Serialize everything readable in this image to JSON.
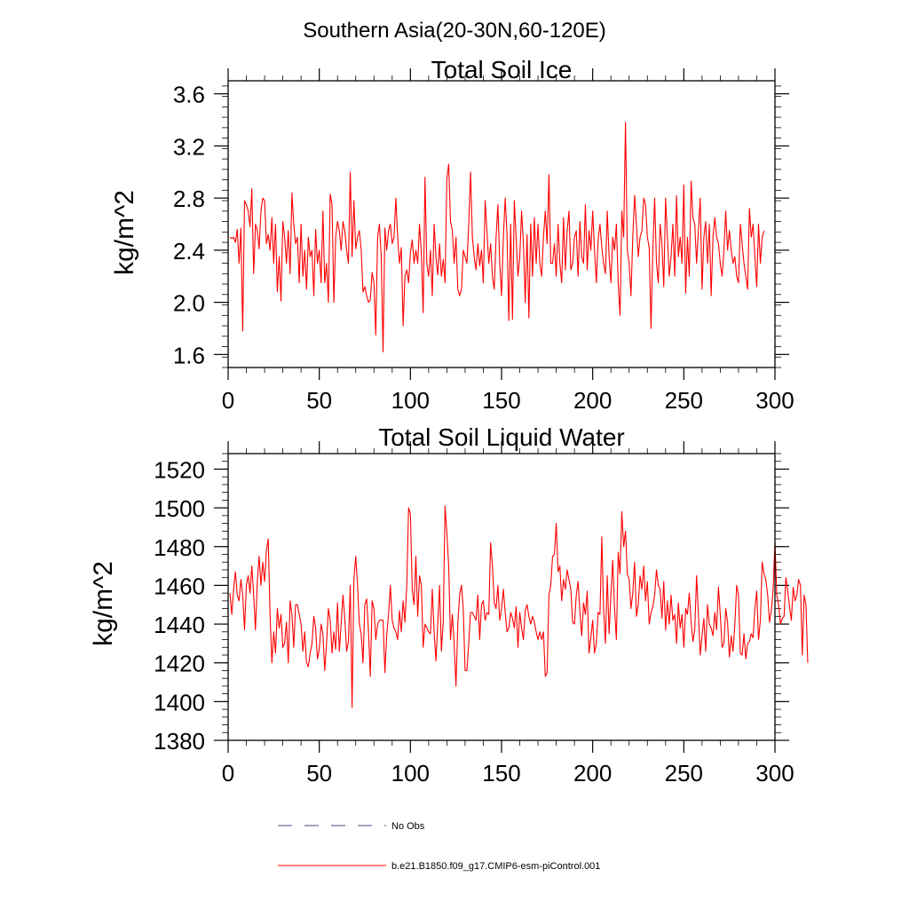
{
  "figure": {
    "region_title": "Southern Asia(20-30N,60-120E)"
  },
  "legend": {
    "items": [
      {
        "label": "No Obs",
        "color": "#4a4a8a",
        "style": "dashed"
      },
      {
        "label": "b.e21.B1850.f09_g17.CMIP6-esm-piControl.001",
        "color": "#ff0000",
        "style": "solid"
      }
    ]
  },
  "chart_data": [
    {
      "type": "line",
      "title": "Total Soil Ice",
      "xlabel": "",
      "ylabel": "kg/m^2",
      "xlim": [
        0,
        300
      ],
      "ylim": [
        1.5,
        3.7
      ],
      "xticks": [
        0,
        50,
        100,
        150,
        200,
        250,
        300
      ],
      "xtick_labels": [
        "0",
        "50",
        "100",
        "150",
        "200",
        "250",
        "300"
      ],
      "yticks": [
        1.6,
        2.0,
        2.4,
        2.8,
        3.2,
        3.6
      ],
      "ytick_labels": [
        "1.6",
        "2.0",
        "2.4",
        "2.8",
        "3.2",
        "3.6"
      ],
      "series": [
        {
          "name": "b.e21.B1850.f09_g17.CMIP6-esm-piControl.001",
          "color": "#ff0000",
          "x_start": 1,
          "values": [
            2.5,
            2.49,
            2.5,
            2.46,
            2.56,
            2.3,
            2.57,
            1.78,
            2.78,
            2.75,
            2.7,
            2.58,
            2.87,
            2.22,
            2.6,
            2.55,
            2.41,
            2.7,
            2.8,
            2.78,
            2.45,
            2.52,
            2.4,
            2.65,
            2.3,
            2.6,
            2.08,
            2.35,
            2.01,
            2.62,
            2.5,
            2.3,
            2.55,
            2.22,
            2.84,
            2.6,
            2.45,
            2.5,
            2.15,
            2.6,
            2.2,
            2.4,
            2.1,
            2.5,
            2.35,
            2.4,
            2.05,
            2.56,
            2.3,
            2.4,
            2.15,
            2.7,
            2.15,
            2.3,
            2.0,
            2.83,
            2.75,
            2.0,
            2.5,
            2.62,
            2.55,
            2.4,
            2.62,
            2.55,
            2.4,
            2.3,
            3.0,
            2.35,
            2.78,
            2.41,
            2.5,
            2.55,
            2.4,
            2.08,
            2.12,
            2.05,
            2.0,
            2.02,
            2.23,
            2.15,
            1.75,
            2.5,
            2.6,
            2.35,
            1.62,
            2.57,
            2.4,
            2.55,
            2.6,
            2.45,
            2.5,
            2.8,
            2.5,
            2.3,
            2.42,
            1.82,
            2.2,
            2.25,
            2.15,
            2.38,
            2.48,
            2.3,
            2.4,
            2.3,
            2.6,
            2.38,
            1.92,
            2.96,
            2.3,
            2.2,
            2.4,
            2.05,
            2.6,
            2.35,
            2.21,
            2.45,
            2.2,
            2.33,
            2.15,
            2.95,
            3.06,
            2.62,
            2.55,
            2.3,
            2.5,
            2.1,
            2.05,
            2.1,
            2.4,
            2.35,
            2.3,
            2.6,
            3.0,
            2.5,
            2.35,
            2.25,
            2.45,
            2.28,
            2.4,
            2.15,
            2.78,
            2.54,
            2.3,
            2.45,
            2.2,
            2.1,
            2.5,
            2.75,
            2.3,
            2.05,
            2.5,
            2.8,
            2.52,
            1.86,
            2.6,
            1.87,
            2.78,
            2.5,
            2.2,
            2.35,
            2.7,
            2.45,
            2.0,
            2.52,
            1.88,
            2.6,
            2.2,
            2.65,
            2.3,
            2.6,
            2.3,
            2.2,
            2.5,
            2.7,
            2.45,
            2.98,
            2.3,
            2.3,
            2.45,
            2.2,
            2.6,
            2.3,
            2.15,
            2.65,
            2.25,
            2.55,
            2.7,
            2.25,
            2.3,
            2.5,
            2.55,
            2.2,
            2.62,
            2.35,
            2.3,
            2.75,
            2.25,
            2.55,
            2.4,
            2.7,
            2.4,
            2.15,
            2.48,
            2.6,
            2.42,
            2.3,
            2.22,
            2.7,
            2.35,
            2.15,
            2.5,
            2.4,
            2.6,
            2.15,
            1.9,
            2.7,
            2.5,
            3.38,
            2.4,
            2.3,
            2.05,
            2.5,
            2.82,
            2.6,
            2.35,
            2.5,
            2.55,
            2.8,
            2.75,
            2.5,
            2.42,
            1.8,
            2.4,
            2.8,
            2.3,
            2.15,
            2.6,
            2.45,
            2.12,
            2.8,
            2.5,
            2.2,
            2.35,
            2.6,
            2.2,
            2.82,
            2.35,
            2.5,
            2.3,
            2.9,
            2.07,
            2.5,
            2.2,
            2.93,
            2.65,
            2.6,
            2.3,
            2.55,
            2.8,
            2.1,
            2.5,
            2.62,
            2.3,
            2.6,
            2.05,
            2.5,
            2.65,
            2.5,
            2.45,
            2.3,
            2.2,
            2.4,
            2.7,
            2.4,
            2.55,
            2.4,
            2.3,
            2.35,
            2.2,
            2.15,
            2.6,
            2.45,
            2.3,
            2.2,
            2.1,
            2.72,
            2.5,
            2.6,
            2.35,
            2.12,
            2.6,
            2.3,
            2.5,
            2.55
          ]
        }
      ]
    },
    {
      "type": "line",
      "title": "Total Soil Liquid Water",
      "xlabel": "",
      "ylabel": "kg/m^2",
      "xlim": [
        0,
        300
      ],
      "ylim": [
        1380,
        1528
      ],
      "xticks": [
        0,
        50,
        100,
        150,
        200,
        250,
        300
      ],
      "xtick_labels": [
        "0",
        "50",
        "100",
        "150",
        "200",
        "250",
        "300"
      ],
      "yticks": [
        1380,
        1400,
        1420,
        1440,
        1460,
        1480,
        1500,
        1520
      ],
      "ytick_labels": [
        "1380",
        "1400",
        "1420",
        "1440",
        "1460",
        "1480",
        "1500",
        "1520"
      ],
      "series": [
        {
          "name": "b.e21.B1850.f09_g17.CMIP6-esm-piControl.001",
          "color": "#ff0000",
          "x_start": 1,
          "values": [
            1456,
            1445,
            1458,
            1467,
            1455,
            1452,
            1463,
            1455,
            1437,
            1460,
            1465,
            1456,
            1470,
            1455,
            1437,
            1462,
            1475,
            1460,
            1472,
            1462,
            1478,
            1484,
            1445,
            1420,
            1436,
            1425,
            1448,
            1438,
            1445,
            1428,
            1430,
            1441,
            1420,
            1452,
            1445,
            1428,
            1450,
            1450,
            1445,
            1440,
            1426,
            1436,
            1420,
            1418,
            1425,
            1430,
            1444,
            1438,
            1422,
            1427,
            1440,
            1435,
            1416,
            1430,
            1448,
            1442,
            1425,
            1436,
            1427,
            1451,
            1426,
            1440,
            1455,
            1443,
            1426,
            1431,
            1460,
            1397,
            1463,
            1475,
            1460,
            1440,
            1435,
            1420,
            1450,
            1453,
            1436,
            1413,
            1452,
            1448,
            1432,
            1440,
            1442,
            1442,
            1442,
            1415,
            1434,
            1445,
            1460,
            1442,
            1438,
            1436,
            1432,
            1447,
            1436,
            1452,
            1441,
            1460,
            1500,
            1497,
            1458,
            1450,
            1475,
            1444,
            1465,
            1460,
            1428,
            1440,
            1438,
            1436,
            1435,
            1458,
            1436,
            1421,
            1440,
            1460,
            1426,
            1441,
            1501,
            1487,
            1470,
            1432,
            1445,
            1430,
            1408,
            1440,
            1455,
            1460,
            1448,
            1416,
            1416,
            1430,
            1446,
            1446,
            1444,
            1442,
            1455,
            1432,
            1450,
            1452,
            1442,
            1446,
            1445,
            1482,
            1470,
            1451,
            1448,
            1460,
            1442,
            1448,
            1458,
            1446,
            1436,
            1438,
            1446,
            1443,
            1438,
            1449,
            1428,
            1446,
            1438,
            1432,
            1447,
            1450,
            1444,
            1440,
            1444,
            1441,
            1436,
            1432,
            1436,
            1432,
            1436,
            1413,
            1415,
            1455,
            1460,
            1475,
            1476,
            1492,
            1467,
            1470,
            1452,
            1463,
            1458,
            1468,
            1463,
            1458,
            1441,
            1440,
            1455,
            1462,
            1446,
            1434,
            1451,
            1445,
            1457,
            1425,
            1433,
            1442,
            1425,
            1430,
            1446,
            1445,
            1485,
            1447,
            1430,
            1465,
            1435,
            1455,
            1473,
            1448,
            1432,
            1477,
            1466,
            1498,
            1480,
            1488,
            1466,
            1463,
            1448,
            1456,
            1472,
            1444,
            1450,
            1465,
            1458,
            1470,
            1452,
            1462,
            1440,
            1446,
            1449,
            1455,
            1468,
            1460,
            1458,
            1443,
            1462,
            1437,
            1452,
            1440,
            1455,
            1442,
            1445,
            1430,
            1451,
            1438,
            1445,
            1428,
            1448,
            1445,
            1456,
            1441,
            1431,
            1437,
            1465,
            1445,
            1424,
            1434,
            1443,
            1426,
            1450,
            1440,
            1438,
            1434,
            1446,
            1437,
            1459,
            1445,
            1428,
            1430,
            1448,
            1441,
            1423,
            1434,
            1426,
            1440,
            1460,
            1455,
            1425,
            1424,
            1435,
            1422,
            1430,
            1431,
            1435,
            1433,
            1448,
            1457,
            1432,
            1442,
            1472,
            1466,
            1463,
            1455,
            1441,
            1447,
            1458,
            1482,
            1455,
            1450,
            1440,
            1443,
            1444,
            1464,
            1457,
            1449,
            1442,
            1459,
            1452,
            1455,
            1463,
            1460,
            1424,
            1455,
            1450,
            1420
          ]
        }
      ]
    }
  ]
}
